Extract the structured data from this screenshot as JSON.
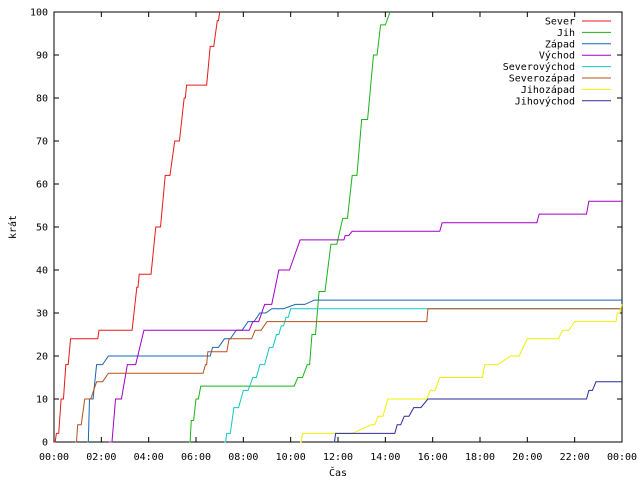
{
  "chart_data": {
    "type": "line",
    "title": "",
    "xlabel": "Čas",
    "ylabel": "krát",
    "xlim": [
      0,
      24
    ],
    "ylim": [
      0,
      100
    ],
    "x_ticks": [
      {
        "value": 0,
        "label": "00:00"
      },
      {
        "value": 2,
        "label": "02:00"
      },
      {
        "value": 4,
        "label": "04:00"
      },
      {
        "value": 6,
        "label": "06:00"
      },
      {
        "value": 8,
        "label": "08:00"
      },
      {
        "value": 10,
        "label": "10:00"
      },
      {
        "value": 12,
        "label": "12:00"
      },
      {
        "value": 14,
        "label": "14:00"
      },
      {
        "value": 16,
        "label": "16:00"
      },
      {
        "value": 18,
        "label": "18:00"
      },
      {
        "value": 20,
        "label": "20:00"
      },
      {
        "value": 22,
        "label": "22:00"
      },
      {
        "value": 24,
        "label": "00:00"
      }
    ],
    "y_ticks": [
      {
        "value": 0,
        "label": "0"
      },
      {
        "value": 10,
        "label": "10"
      },
      {
        "value": 20,
        "label": "20"
      },
      {
        "value": 30,
        "label": "30"
      },
      {
        "value": 40,
        "label": "40"
      },
      {
        "value": 50,
        "label": "50"
      },
      {
        "value": 60,
        "label": "60"
      },
      {
        "value": 70,
        "label": "70"
      },
      {
        "value": 80,
        "label": "80"
      },
      {
        "value": 90,
        "label": "90"
      },
      {
        "value": 100,
        "label": "100"
      }
    ],
    "grid": false,
    "legend_position": "top-right",
    "step": true,
    "series": [
      {
        "name": "Sever",
        "color": "#e8191a",
        "points": [
          [
            0,
            0
          ],
          [
            0.1,
            2
          ],
          [
            0.3,
            10
          ],
          [
            0.5,
            18
          ],
          [
            0.7,
            24
          ],
          [
            1.8,
            24
          ],
          [
            1.9,
            26
          ],
          [
            3.1,
            26
          ],
          [
            3.5,
            36
          ],
          [
            3.6,
            39
          ],
          [
            3.9,
            39
          ],
          [
            4.3,
            50
          ],
          [
            4.7,
            62
          ],
          [
            5.1,
            70
          ],
          [
            5.5,
            80
          ],
          [
            5.6,
            83
          ],
          [
            6.3,
            83
          ],
          [
            6.6,
            92
          ],
          [
            6.9,
            98
          ],
          [
            7.0,
            100
          ]
        ]
      },
      {
        "name": "Jih",
        "color": "#18b418",
        "points": [
          [
            5.7,
            0
          ],
          [
            5.8,
            5
          ],
          [
            6.0,
            10
          ],
          [
            6.2,
            13
          ],
          [
            10.0,
            13
          ],
          [
            10.3,
            15
          ],
          [
            10.7,
            18
          ],
          [
            10.9,
            25
          ],
          [
            11.2,
            35
          ],
          [
            11.7,
            46
          ],
          [
            12.2,
            52
          ],
          [
            12.6,
            62
          ],
          [
            13.0,
            75
          ],
          [
            13.5,
            90
          ],
          [
            13.8,
            97
          ],
          [
            14.2,
            100
          ]
        ]
      },
      {
        "name": "Západ",
        "color": "#1764b4",
        "points": [
          [
            1.4,
            0
          ],
          [
            1.5,
            10
          ],
          [
            1.8,
            18
          ],
          [
            2.3,
            20
          ],
          [
            6.5,
            20
          ],
          [
            6.7,
            22
          ],
          [
            7.2,
            24
          ],
          [
            7.7,
            26
          ],
          [
            8.2,
            28
          ],
          [
            8.7,
            30
          ],
          [
            9.2,
            31
          ],
          [
            10.2,
            32
          ],
          [
            11.0,
            33
          ],
          [
            24,
            33
          ]
        ]
      },
      {
        "name": "Východ",
        "color": "#a000c8",
        "points": [
          [
            2.3,
            0
          ],
          [
            2.6,
            10
          ],
          [
            3.1,
            18
          ],
          [
            3.8,
            26
          ],
          [
            8.1,
            26
          ],
          [
            8.4,
            28
          ],
          [
            8.9,
            32
          ],
          [
            9.5,
            40
          ],
          [
            10.4,
            47
          ],
          [
            12.2,
            47
          ],
          [
            12.3,
            48
          ],
          [
            12.6,
            49
          ],
          [
            16.2,
            49
          ],
          [
            16.4,
            51
          ],
          [
            20.3,
            51
          ],
          [
            20.5,
            53
          ],
          [
            22.4,
            53
          ],
          [
            22.6,
            56
          ],
          [
            24,
            56
          ]
        ]
      },
      {
        "name": "Severovýchod",
        "color": "#10c8c8",
        "points": [
          [
            7.2,
            0
          ],
          [
            7.3,
            2
          ],
          [
            7.6,
            8
          ],
          [
            8.0,
            12
          ],
          [
            8.4,
            15
          ],
          [
            8.7,
            18
          ],
          [
            9.1,
            22
          ],
          [
            9.4,
            25
          ],
          [
            9.6,
            27
          ],
          [
            9.8,
            29
          ],
          [
            10.0,
            31
          ],
          [
            24,
            31
          ]
        ]
      },
      {
        "name": "Severozápad",
        "color": "#b4501e",
        "points": [
          [
            0.9,
            0
          ],
          [
            1.0,
            4
          ],
          [
            1.3,
            10
          ],
          [
            1.8,
            14
          ],
          [
            2.3,
            16
          ],
          [
            6.2,
            16
          ],
          [
            6.4,
            18
          ],
          [
            6.5,
            21
          ],
          [
            7.2,
            21
          ],
          [
            7.4,
            24
          ],
          [
            8.2,
            24
          ],
          [
            8.5,
            26
          ],
          [
            9.0,
            28
          ],
          [
            15.7,
            28
          ],
          [
            15.8,
            31
          ],
          [
            24,
            31
          ]
        ]
      },
      {
        "name": "Jihozápad",
        "color": "#f0f000",
        "points": [
          [
            10.4,
            0
          ],
          [
            10.5,
            2
          ],
          [
            11.8,
            2
          ],
          [
            13.4,
            4
          ],
          [
            13.7,
            6
          ],
          [
            14.1,
            10
          ],
          [
            15.6,
            10
          ],
          [
            15.9,
            12
          ],
          [
            16.3,
            15
          ],
          [
            18.0,
            15
          ],
          [
            18.2,
            18
          ],
          [
            19.3,
            20
          ],
          [
            20.0,
            24
          ],
          [
            21.1,
            24
          ],
          [
            21.5,
            26
          ],
          [
            22.0,
            28
          ],
          [
            23.7,
            28
          ],
          [
            23.8,
            30
          ],
          [
            24,
            32
          ]
        ]
      },
      {
        "name": "Jihovýchod",
        "color": "#2a2a9e",
        "points": [
          [
            11.8,
            0
          ],
          [
            11.9,
            2
          ],
          [
            14.3,
            2
          ],
          [
            14.5,
            4
          ],
          [
            14.8,
            6
          ],
          [
            15.2,
            8
          ],
          [
            15.8,
            10
          ],
          [
            22.4,
            10
          ],
          [
            22.6,
            12
          ],
          [
            22.9,
            14
          ],
          [
            24,
            14
          ]
        ]
      }
    ]
  }
}
